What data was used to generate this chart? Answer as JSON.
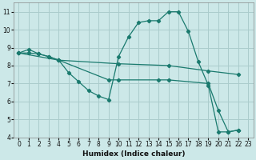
{
  "xlabel": "Humidex (Indice chaleur)",
  "background_color": "#cce8e8",
  "grid_color": "#aacccc",
  "line_color": "#1a7a6e",
  "xlim": [
    -0.5,
    23.5
  ],
  "ylim": [
    4,
    11.5
  ],
  "yticks": [
    4,
    5,
    6,
    7,
    8,
    9,
    10,
    11
  ],
  "xticks": [
    0,
    1,
    2,
    3,
    4,
    5,
    6,
    7,
    8,
    9,
    10,
    11,
    12,
    13,
    14,
    15,
    16,
    17,
    18,
    19,
    20,
    21,
    22,
    23
  ],
  "series": [
    {
      "x": [
        0,
        1,
        2,
        3,
        4,
        5,
        6,
        7,
        8,
        9,
        10,
        11,
        12,
        13,
        14,
        15,
        16,
        17,
        18,
        19,
        20,
        21,
        22
      ],
      "y": [
        8.7,
        8.9,
        8.65,
        8.5,
        8.3,
        7.6,
        7.1,
        6.6,
        6.3,
        6.1,
        8.5,
        9.6,
        10.4,
        10.5,
        10.5,
        11.0,
        11.0,
        9.9,
        8.2,
        6.9,
        4.3,
        4.3,
        4.4
      ]
    },
    {
      "x": [
        0,
        1,
        2,
        3,
        4,
        10,
        15,
        19,
        22
      ],
      "y": [
        8.7,
        8.7,
        8.65,
        8.5,
        8.3,
        8.1,
        8.0,
        7.7,
        7.5
      ]
    },
    {
      "x": [
        0,
        4,
        9,
        10,
        14,
        15,
        19,
        20,
        21,
        22
      ],
      "y": [
        8.7,
        8.3,
        7.2,
        7.2,
        7.2,
        7.2,
        7.0,
        5.5,
        4.3,
        4.4
      ]
    }
  ]
}
